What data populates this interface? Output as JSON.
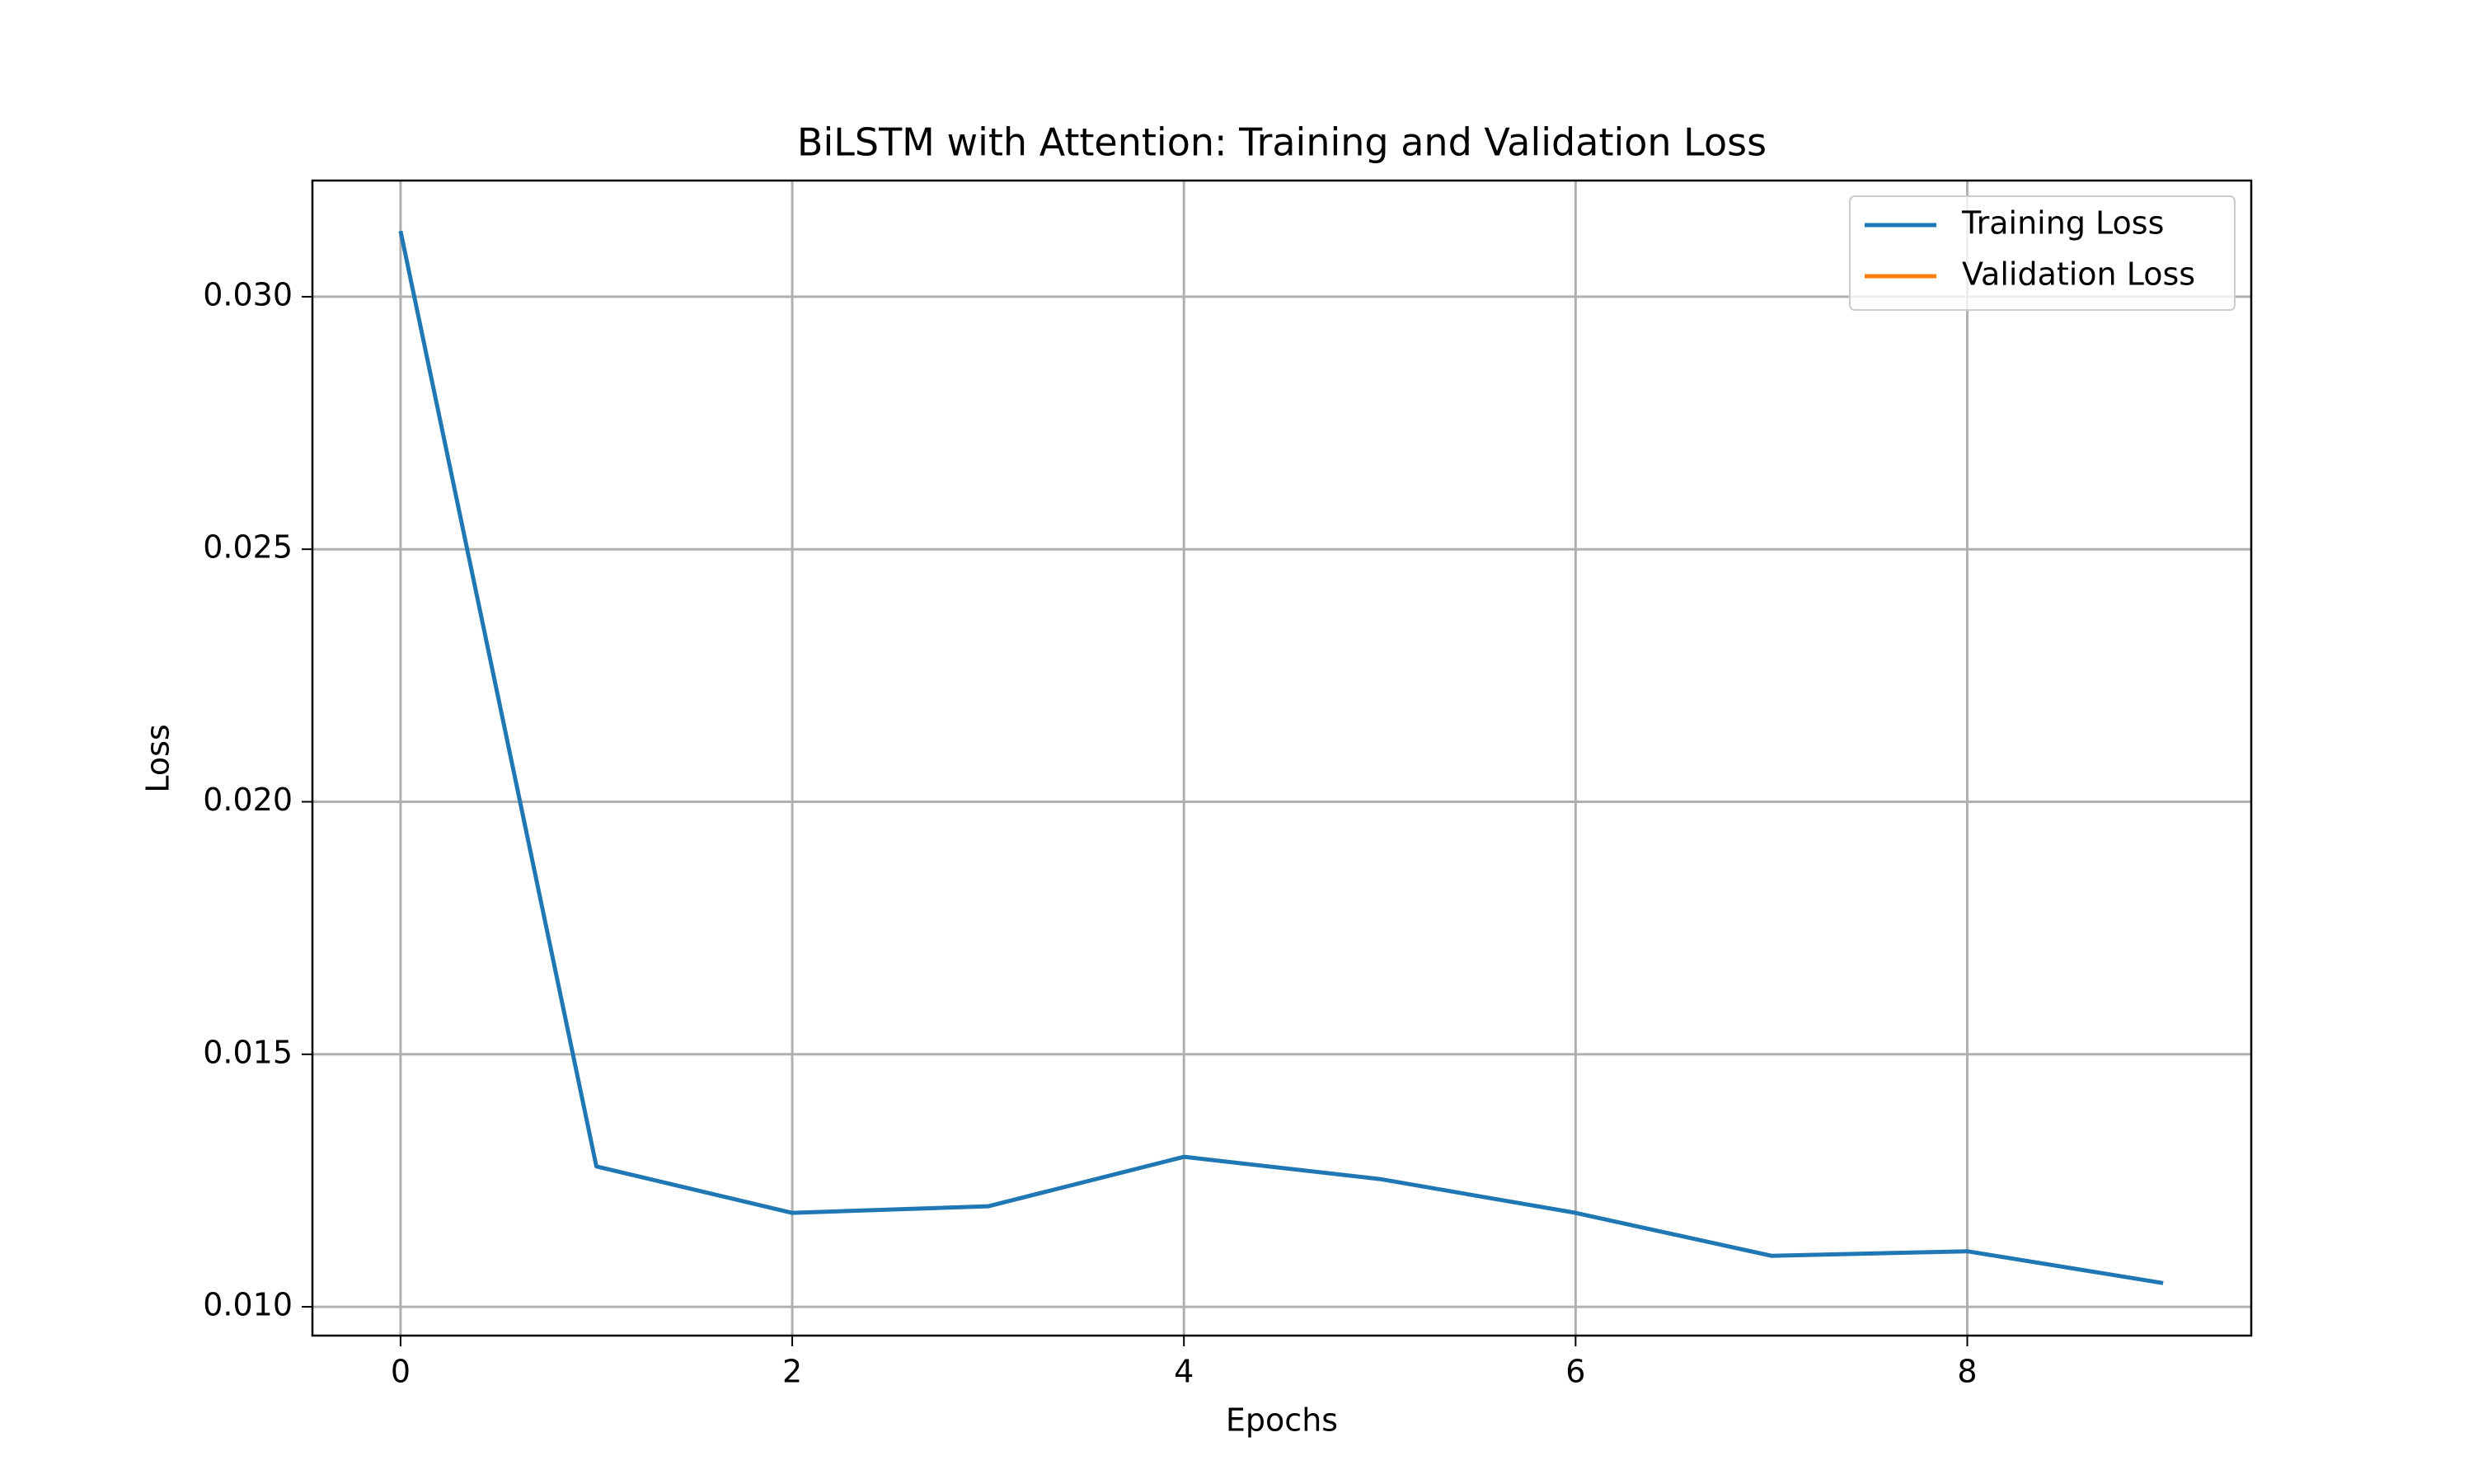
{
  "chart_data": {
    "type": "line",
    "title": "BiLSTM with Attention: Training and Validation Loss",
    "xlabel": "Epochs",
    "ylabel": "Loss",
    "x": [
      0,
      1,
      2,
      3,
      4,
      5,
      6,
      7,
      8,
      9
    ],
    "series": [
      {
        "name": "Training Loss",
        "color": "#1f77b4",
        "values": [
          0.0313,
          0.01278,
          0.01186,
          0.01199,
          0.01297,
          0.01253,
          0.01186,
          0.01101,
          0.0111,
          0.01047
        ]
      },
      {
        "name": "Validation Loss",
        "color": "#ff7f0e",
        "values": [
          null,
          null,
          null,
          null,
          null,
          null,
          null,
          null,
          null,
          null
        ]
      }
    ],
    "xlim": [
      -0.45,
      9.45
    ],
    "xticks": [
      0,
      2,
      4,
      6,
      8
    ],
    "ylim": [
      0.00943,
      0.0323
    ],
    "yticks": [
      {
        "value": 0.01,
        "label": "0.010"
      },
      {
        "value": 0.015,
        "label": "0.015"
      },
      {
        "value": 0.02,
        "label": "0.020"
      },
      {
        "value": 0.025,
        "label": "0.025"
      },
      {
        "value": 0.03,
        "label": "0.030"
      }
    ],
    "grid": true,
    "legend": "upper right"
  }
}
